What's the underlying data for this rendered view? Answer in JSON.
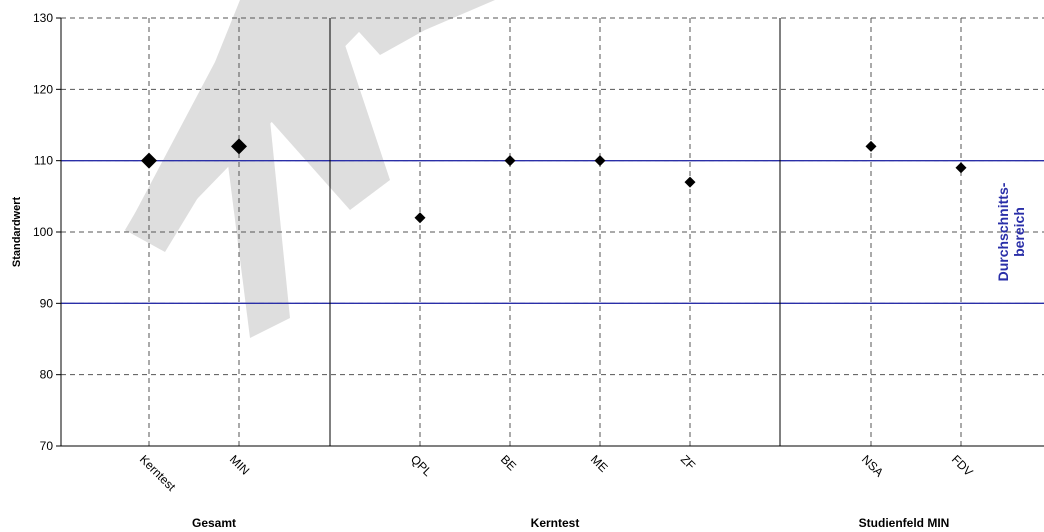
{
  "chart_data": {
    "type": "scatter",
    "title": "",
    "ylabel": "Standardwert",
    "ylim": [
      70,
      130
    ],
    "yticks": [
      70,
      80,
      90,
      100,
      110,
      120,
      130
    ],
    "grid": true,
    "categories": [
      "Kerntest",
      "MIN",
      "QPL",
      "BE",
      "ME",
      "ZF",
      "NSA",
      "FDV"
    ],
    "values": [
      110,
      112,
      102,
      110,
      110,
      107,
      112,
      109
    ],
    "emphasized": [
      true,
      true,
      false,
      false,
      false,
      false,
      false,
      false
    ],
    "groups": [
      {
        "label": "Gesamt",
        "categories": [
          "Kerntest",
          "MIN"
        ]
      },
      {
        "label": "Kerntest",
        "categories": [
          "QPL",
          "BE",
          "ME",
          "ZF"
        ]
      },
      {
        "label": "Studienfeld MIN",
        "categories": [
          "NSA",
          "FDV"
        ]
      }
    ],
    "reference_band": {
      "lower": 90,
      "upper": 110,
      "label_line1": "Durchschnitts-",
      "label_line2": "bereich",
      "color": "#2a2fa8"
    },
    "marker_color": "#000000",
    "grid_color": "#555555",
    "watermark": {
      "text": "MUSTER",
      "color": "#dedede"
    }
  }
}
